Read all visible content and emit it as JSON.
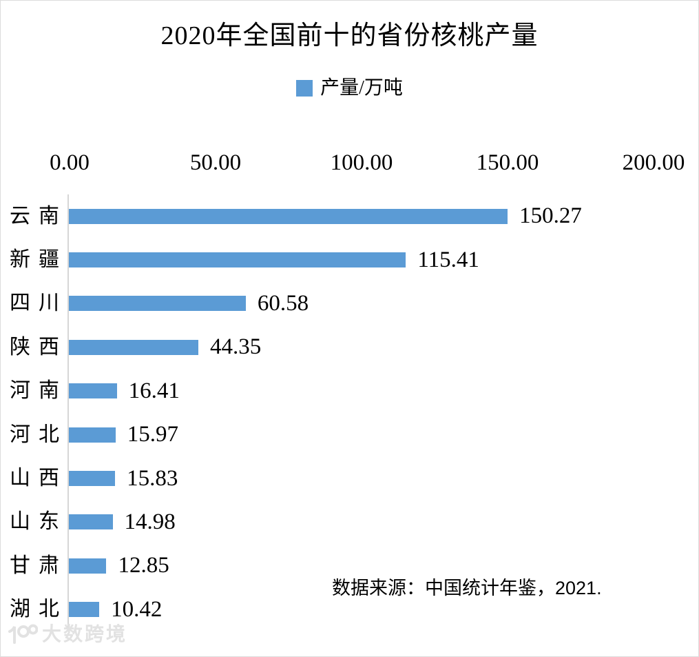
{
  "page": {
    "background": "#ffffff",
    "border_color": "#dcdcdc"
  },
  "chart_data": {
    "type": "bar",
    "orientation": "horizontal",
    "title": "2020年全国前十的省份核桃产量",
    "legend": {
      "label": "产量/万吨",
      "marker_color": "#5b9bd5",
      "position": "top-center"
    },
    "categories": [
      "云南",
      "新疆",
      "四川",
      "陕西",
      "河南",
      "河北",
      "山西",
      "山东",
      "甘肃",
      "湖北"
    ],
    "values": [
      150.27,
      115.41,
      60.58,
      44.35,
      16.41,
      15.97,
      15.83,
      14.98,
      12.85,
      10.42
    ],
    "value_labels": [
      "150.27",
      "115.41",
      "60.58",
      "44.35",
      "16.41",
      "15.97",
      "15.83",
      "14.98",
      "12.85",
      "10.42"
    ],
    "x_axis": {
      "position": "top",
      "min": 0,
      "max": 200,
      "ticks": [
        "0.00",
        "50.00",
        "100.00",
        "150.00",
        "200.00"
      ]
    },
    "xlabel": "",
    "ylabel": "",
    "grid": false,
    "bar_color": "#5b9bd5",
    "axis_line_color": "#d6d6d6",
    "source_note": "数据来源：中国统计年鉴，2021."
  },
  "watermark": {
    "text": "大数跨境",
    "color": "#e2e2e2"
  }
}
